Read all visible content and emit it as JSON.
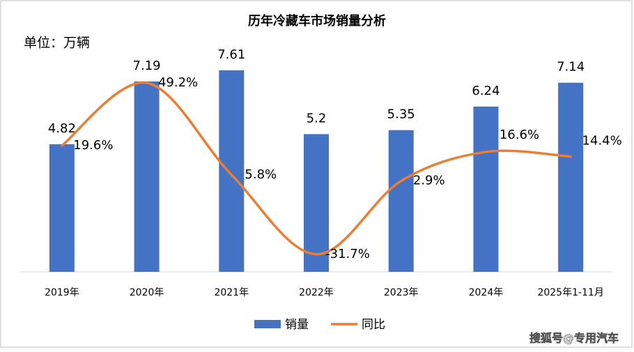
{
  "chart_data": {
    "type": "bar-line",
    "title": "历年冷藏车市场销量分析",
    "unit_label": "单位：万辆",
    "categories": [
      "2019年",
      "2020年",
      "2021年",
      "2022年",
      "2023年",
      "2024年",
      "2025年1-11月"
    ],
    "series": [
      {
        "name": "销量",
        "type": "bar",
        "color": "#4472c4",
        "values": [
          4.82,
          7.19,
          7.61,
          5.2,
          5.35,
          6.24,
          7.14
        ]
      },
      {
        "name": "同比",
        "type": "line",
        "axis": "y2",
        "color": "#ed7d31",
        "values": [
          19.6,
          49.2,
          5.8,
          -31.7,
          2.9,
          16.6,
          14.4
        ],
        "value_labels": [
          "19.6%",
          "49.2%",
          "5.8%",
          "-31.7%",
          "2.9%",
          "16.6%",
          "14.4%"
        ]
      }
    ],
    "ylim": [
      0,
      8
    ],
    "y2lim": [
      -40,
      60
    ],
    "legend": "bottom",
    "watermark": "搜狐号@专用汽车"
  }
}
